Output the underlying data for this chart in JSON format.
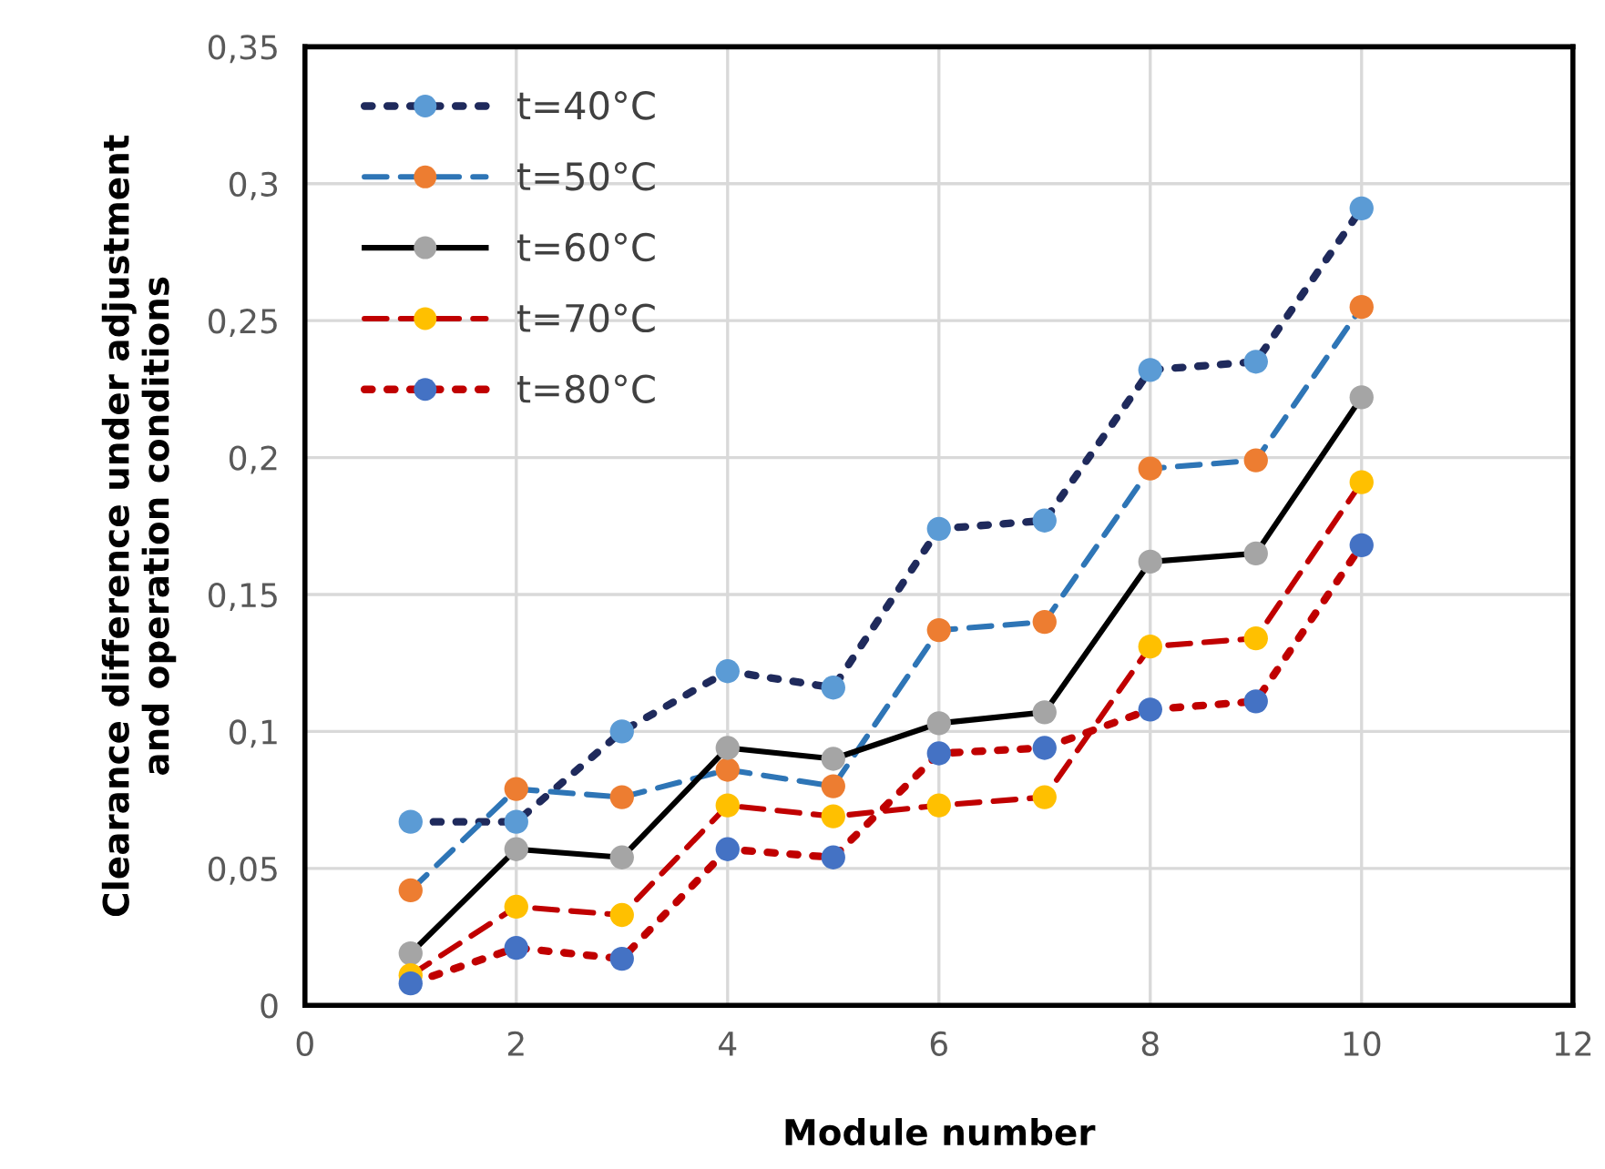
{
  "chart_data": {
    "type": "line",
    "xlabel": "Module number",
    "ylabel": "Clearance difference under adjustment\nand operation conditions",
    "x": [
      1,
      2,
      3,
      4,
      5,
      6,
      7,
      8,
      9,
      10
    ],
    "series": [
      {
        "name": "t=40°C",
        "color": "#1f2a5c",
        "colors": [
          "#5b9bd5",
          "#5b9bd5",
          "#5b9bd5",
          "#5b9bd5",
          "#5b9bd5",
          "#5b9bd5",
          "#5b9bd5",
          "#5b9bd5",
          "#5b9bd5",
          "#5b9bd5"
        ],
        "line_style": "dotted",
        "values": [
          0.067,
          0.067,
          0.1,
          0.122,
          0.116,
          0.174,
          0.177,
          0.232,
          0.235,
          0.291
        ]
      },
      {
        "name": "t=50°C",
        "color": "#2e75b6",
        "colors": [
          "#ed7d31",
          "#ed7d31",
          "#ed7d31",
          "#ed7d31",
          "#ed7d31",
          "#ed7d31",
          "#ed7d31",
          "#ed7d31",
          "#ed7d31",
          "#ed7d31"
        ],
        "line_style": "dashed",
        "values": [
          0.042,
          0.079,
          0.076,
          0.086,
          0.08,
          0.137,
          0.14,
          0.196,
          0.199,
          0.255
        ]
      },
      {
        "name": "t=60°C",
        "color": "#000000",
        "colors": [
          "#a5a5a5",
          "#a5a5a5",
          "#a5a5a5",
          "#a5a5a5",
          "#a5a5a5",
          "#a5a5a5",
          "#a5a5a5",
          "#a5a5a5",
          "#a5a5a5",
          "#a5a5a5"
        ],
        "line_style": "solid",
        "values": [
          0.019,
          0.057,
          0.054,
          0.094,
          0.09,
          0.103,
          0.107,
          0.162,
          0.165,
          0.222
        ]
      },
      {
        "name": "t=70°C",
        "color": "#c00000",
        "colors": [
          "#ffc000",
          "#ffc000",
          "#ffc000",
          "#ffc000",
          "#ffc000",
          "#ffc000",
          "#ffc000",
          "#ffc000",
          "#ffc000",
          "#ffc000"
        ],
        "line_style": "dashed",
        "values": [
          0.011,
          0.036,
          0.033,
          0.073,
          0.069,
          0.073,
          0.076,
          0.131,
          0.134,
          0.191
        ]
      },
      {
        "name": "t=80°C",
        "color": "#c00000",
        "colors": [
          "#4472c4",
          "#4472c4",
          "#4472c4",
          "#4472c4",
          "#4472c4",
          "#4472c4",
          "#4472c4",
          "#4472c4",
          "#4472c4",
          "#4472c4"
        ],
        "line_style": "dotted",
        "values": [
          0.008,
          0.021,
          0.017,
          0.057,
          0.054,
          0.092,
          0.094,
          0.108,
          0.111,
          0.168
        ]
      }
    ],
    "xlim": [
      0,
      12
    ],
    "xticks": [
      0,
      2,
      4,
      6,
      8,
      10,
      12
    ],
    "ylim": [
      0,
      0.35
    ],
    "yticks": [
      0,
      {
        "value": 0.05,
        "label": "0,05"
      },
      {
        "value": 0.1,
        "label": "0,1"
      },
      {
        "value": 0.15,
        "label": "0,15"
      },
      {
        "value": 0.2,
        "label": "0,2"
      },
      {
        "value": 0.25,
        "label": "0,25"
      },
      {
        "value": 0.3,
        "label": "0,3"
      },
      {
        "value": 0.35,
        "label": "0,35"
      }
    ],
    "grid": true,
    "legend": "top left",
    "marker": "circle"
  }
}
